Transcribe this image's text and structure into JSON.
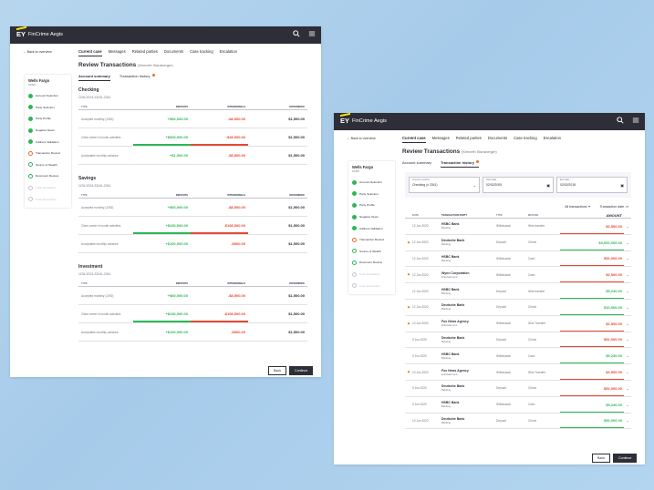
{
  "app": {
    "logo": "EY",
    "name": "FinCrime Aegis",
    "search_icon": "search-icon",
    "menu_icon": "menu-icon"
  },
  "nav": {
    "back": "Back to overview",
    "tabs": [
      "Current case",
      "Messages",
      "Related parties",
      "Documents",
      "Case tracking",
      "Escalation"
    ]
  },
  "page": {
    "title": "Review Transactions",
    "subtitle": "(Kenneth Stansberger)",
    "subtabs": [
      "Account summary",
      "Transaction history"
    ]
  },
  "sidebar": {
    "name": "Wells Fargo",
    "id": "12345",
    "steps": [
      {
        "label": "Account Selection",
        "state": "done"
      },
      {
        "label": "Party Selection",
        "state": "done"
      },
      {
        "label": "Party Profile",
        "state": "done"
      },
      {
        "label": "Negative News",
        "state": "done"
      },
      {
        "label": "Address Validation",
        "state": "done"
      },
      {
        "label": "Transaction Review",
        "state": "cur"
      },
      {
        "label": "Source of Wealth",
        "state": "todo"
      },
      {
        "label": "Document Review",
        "state": "todo"
      },
      {
        "label": "Case Escalation",
        "state": "dis"
      },
      {
        "label": "Case Resolution",
        "state": "dis"
      }
    ]
  },
  "summary": {
    "headers": [
      "TYPE",
      "DEPOSITS",
      "WITHDRAWALS",
      "DIFFERENCE"
    ],
    "sections": [
      {
        "name": "Checking",
        "account": "1234-2024-23241-2341",
        "rows": [
          {
            "type": "Accepted monthly (1392)",
            "dep": "+$60,000.00",
            "wd": "-$8,500.00",
            "diff": "$1,500.00",
            "hl": false
          },
          {
            "type": "Client center 6 month activities",
            "dep": "+$600,000.00",
            "wd": "-$28,500.00",
            "diff": "$1,500.00",
            "hl": true
          },
          {
            "type": "Acceptable monthly variance",
            "dep": "+$1,000.00",
            "wd": "-$8,500.00",
            "diff": "$1,500.00",
            "hl": false
          }
        ]
      },
      {
        "name": "Savings",
        "account": "1234-2024-23241-2341",
        "rows": [
          {
            "type": "Accepted monthly (1392)",
            "dep": "+$60,000.00",
            "wd": "-$8,500.00",
            "diff": "$1,500.00",
            "hl": false
          },
          {
            "type": "Client center 6 month activities",
            "dep": "+$230,000.00",
            "wd": "-$108,500.00",
            "diff": "$1,500.00",
            "hl": true
          },
          {
            "type": "Acceptable monthly variance",
            "dep": "+$100,000.00",
            "wd": "-$500.00",
            "diff": "$1,500.00",
            "hl": false
          }
        ]
      },
      {
        "name": "Investment",
        "account": "1234-2024-23241-2341",
        "rows": [
          {
            "type": "Accepted monthly (1392)",
            "dep": "+$60,000.00",
            "wd": "-$8,500.00",
            "diff": "$1,500.00",
            "hl": false
          },
          {
            "type": "Client center 6 month activities",
            "dep": "+$230,000.00",
            "wd": "-$108,500.00",
            "diff": "$1,500.00",
            "hl": true
          },
          {
            "type": "Acceptable monthly variance",
            "dep": "+$100,000.00",
            "wd": "-$500.00",
            "diff": "$1,500.00",
            "hl": false
          }
        ]
      }
    ]
  },
  "filters": {
    "account_label": "Account number",
    "account_value": "Checking (x 2341)",
    "start_label": "Start date",
    "start_value": "02/02/2005",
    "end_label": "End date",
    "end_value": "02/02/2018",
    "all_transactions": "All transactions",
    "sort": "Transaction date"
  },
  "history": {
    "headers": [
      "DATE",
      "TRANSACTION PARTY",
      "TYPE",
      "METHOD",
      "AMOUNT"
    ],
    "rows": [
      {
        "flag": false,
        "date": "12 Jun 2020",
        "party": "HSBC Bank",
        "cat": "Banking",
        "type": "Withdrawal",
        "method": "Wire transfer",
        "amount": "$2,500.00",
        "dir": "neg"
      },
      {
        "flag": true,
        "date": "12 Jun 2020",
        "party": "Deutsche Bank",
        "cat": "Banking",
        "type": "Deposit",
        "method": "Check",
        "amount": "$3,000,000.00",
        "dir": "pos"
      },
      {
        "flag": false,
        "date": "12 Jun 2020",
        "party": "HSBC Bank",
        "cat": "Banking",
        "type": "Withdrawal",
        "method": "Cash",
        "amount": "$52,000.00",
        "dir": "neg"
      },
      {
        "flag": true,
        "date": "12 Jun 2020",
        "party": "Wynn Corporation",
        "cat": "Entertainment",
        "type": "Withdrawal",
        "method": "Cash",
        "amount": "$2,500.00",
        "dir": "neg"
      },
      {
        "flag": false,
        "date": "12 Jun 2020",
        "party": "HSBC Bank",
        "cat": "Banking",
        "type": "Deposit",
        "method": "Wire transfer",
        "amount": "$5,230.00",
        "dir": "pos"
      },
      {
        "flag": true,
        "date": "12 Jun 2020",
        "party": "Deutsche Bank",
        "cat": "Banking",
        "type": "Deposit",
        "method": "Check",
        "amount": "$10,000.00",
        "dir": "pos"
      },
      {
        "flag": true,
        "date": "10 Jun 2020",
        "party": "Fox News Agency",
        "cat": "Entertainment",
        "type": "Withdrawal",
        "method": "Wire Transfer",
        "amount": "$2,500.00",
        "dir": "neg"
      },
      {
        "flag": false,
        "date": "9 Jun 2020",
        "party": "Deutsche Bank",
        "cat": "Banking",
        "type": "Deposit",
        "method": "Check",
        "amount": "$52,000.00",
        "dir": "neg"
      },
      {
        "flag": false,
        "date": "9 Jun 2020",
        "party": "HSBC Bank",
        "cat": "Banking",
        "type": "Withdrawal",
        "method": "Cash",
        "amount": "$5,230.00",
        "dir": "pos"
      },
      {
        "flag": true,
        "date": "10 Jun 2020",
        "party": "Fox News Agency",
        "cat": "Entertainment",
        "type": "Withdrawal",
        "method": "Wire Transfer",
        "amount": "$2,500.00",
        "dir": "neg"
      },
      {
        "flag": false,
        "date": "9 Jun 2020",
        "party": "Deutsche Bank",
        "cat": "Banking",
        "type": "Deposit",
        "method": "Check",
        "amount": "$52,000.00",
        "dir": "neg"
      },
      {
        "flag": false,
        "date": "9 Jun 2020",
        "party": "HSBC Bank",
        "cat": "Banking",
        "type": "Withdrawal",
        "method": "Cash",
        "amount": "$5,230.00",
        "dir": "pos"
      },
      {
        "flag": false,
        "date": "10 Jun 2020",
        "party": "Deutsche Bank",
        "cat": "Banking",
        "type": "Deposit",
        "method": "Check",
        "amount": "$52,000.00",
        "dir": "pos"
      }
    ]
  },
  "actions": {
    "back": "Back",
    "continue": "Continue"
  },
  "colors": {
    "dark": "#2e2e38",
    "positive": "#2db757",
    "negative": "#e34a34",
    "accent": "#ffe600",
    "flag": "#e8702a"
  }
}
